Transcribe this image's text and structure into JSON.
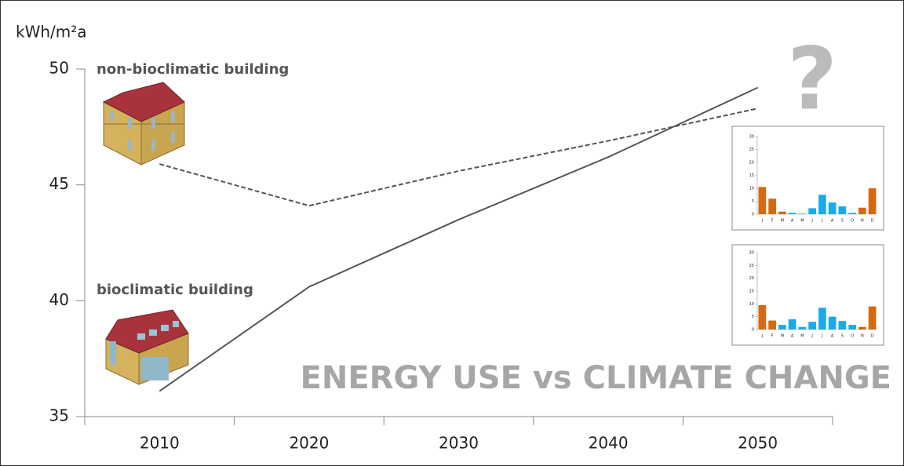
{
  "chart_data": [
    {
      "type": "line",
      "title": "ENERGY USE vs CLIMATE CHANGE",
      "y_label": "kWh/m²a",
      "annotation": "?",
      "categories": [
        "2010",
        "2020",
        "2030",
        "2040",
        "2050"
      ],
      "ylim": [
        35,
        50
      ],
      "yticks": [
        35,
        40,
        45,
        50
      ],
      "series": [
        {
          "name": "non-bioclimatic building",
          "color": "#555555",
          "line_style": "dashed",
          "values": [
            45.9,
            44.1,
            45.6,
            46.9,
            48.3
          ]
        },
        {
          "name": "bioclimatic building",
          "color": "#555555",
          "line_style": "solid",
          "values": [
            36.1,
            40.6,
            43.5,
            46.2,
            49.2
          ]
        }
      ]
    },
    {
      "type": "bar",
      "categories": [
        "J",
        "F",
        "M",
        "A",
        "M",
        "J",
        "J",
        "A",
        "S",
        "O",
        "N",
        "D"
      ],
      "values": [
        10.5,
        6,
        1,
        0.5,
        0.2,
        2.3,
        7.5,
        4.5,
        3,
        0.5,
        2.5,
        10
      ],
      "colors": [
        "#d4690f",
        "#d4690f",
        "#d4690f",
        "#1aaae6",
        "#1aaae6",
        "#1aaae6",
        "#1aaae6",
        "#1aaae6",
        "#1aaae6",
        "#1aaae6",
        "#d4690f",
        "#d4690f"
      ],
      "ylim": [
        0,
        30
      ],
      "yticks": [
        0,
        5,
        10,
        15,
        20,
        25,
        30
      ]
    },
    {
      "type": "bar",
      "categories": [
        "J",
        "F",
        "M",
        "A",
        "M",
        "J",
        "J",
        "A",
        "S",
        "O",
        "N",
        "D"
      ],
      "values": [
        9.5,
        3.5,
        1.8,
        4,
        1,
        3,
        8.5,
        5,
        3.3,
        1.8,
        1,
        9
      ],
      "colors": [
        "#d4690f",
        "#d4690f",
        "#1aaae6",
        "#1aaae6",
        "#1aaae6",
        "#1aaae6",
        "#1aaae6",
        "#1aaae6",
        "#1aaae6",
        "#1aaae6",
        "#d4690f",
        "#d4690f"
      ],
      "ylim": [
        0,
        30
      ],
      "yticks": [
        0,
        5,
        10,
        15,
        20,
        25,
        30
      ]
    }
  ]
}
